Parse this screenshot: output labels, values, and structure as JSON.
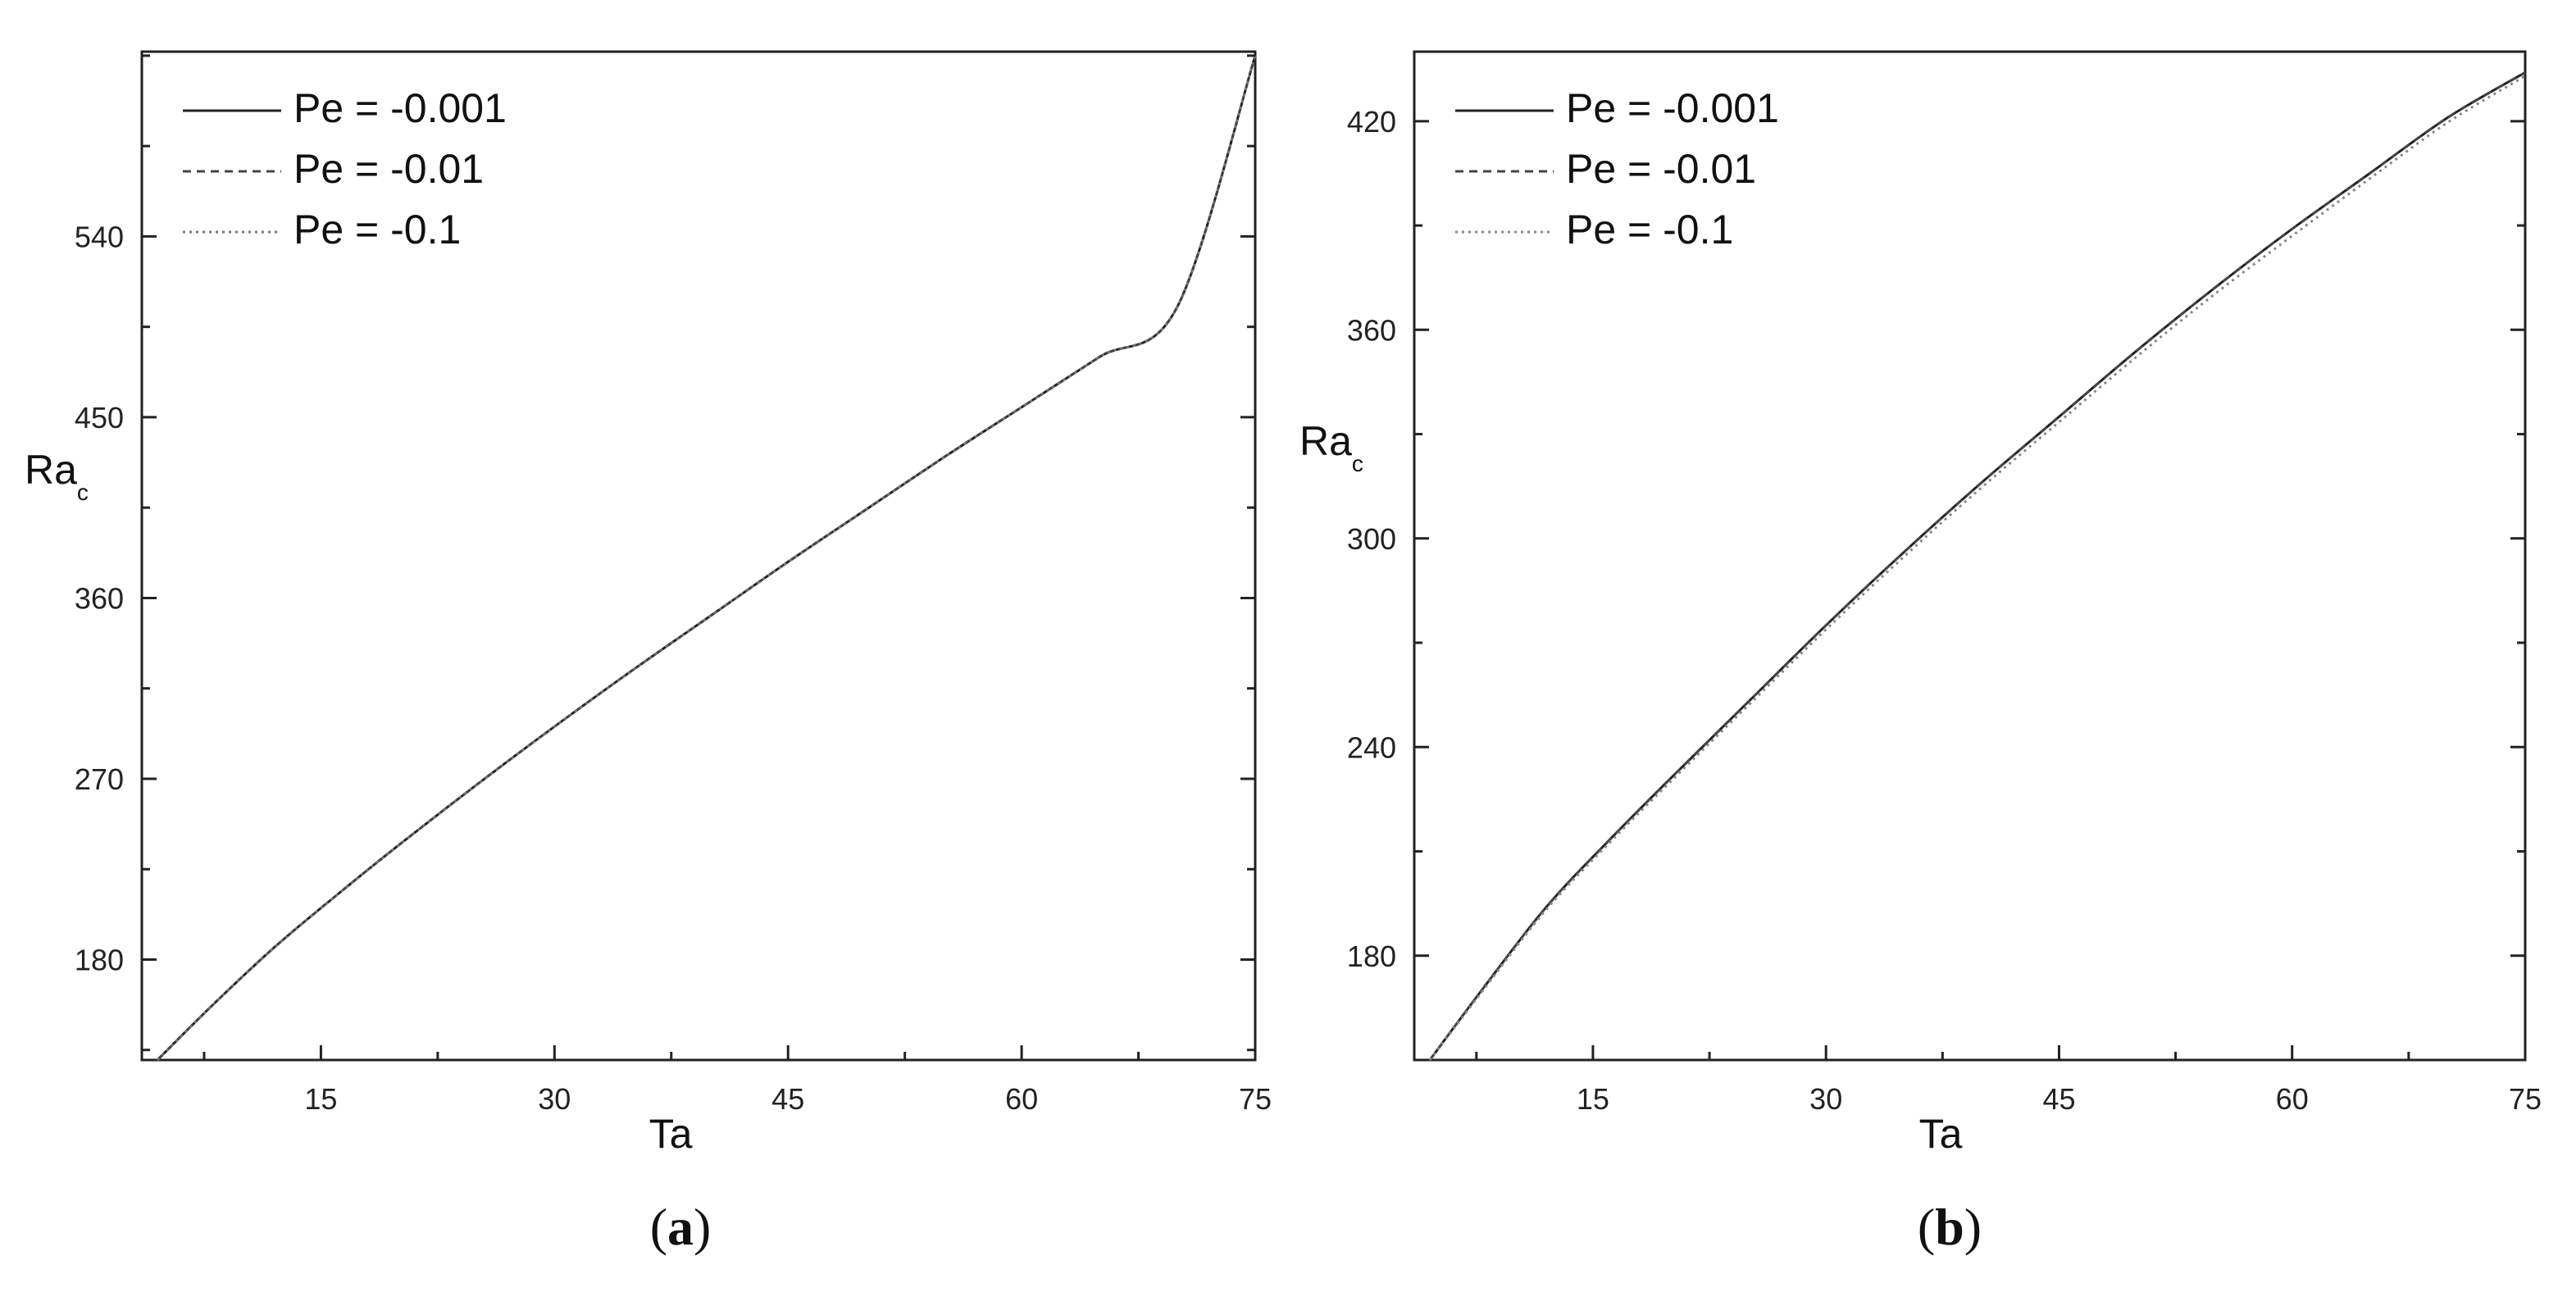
{
  "chart_data": [
    {
      "type": "line",
      "panel_label": "a",
      "xlabel": "Ta",
      "ylabel_main": "Ra",
      "ylabel_sub": "c",
      "xlim": [
        3.5,
        75
      ],
      "ylim": [
        130,
        632
      ],
      "xticks": [
        15,
        30,
        45,
        60,
        75
      ],
      "yticks": [
        180,
        270,
        360,
        450,
        540
      ],
      "legend_position": "top-left",
      "grid": false,
      "series": [
        {
          "name": "Pe = -0.001",
          "style": "solid",
          "color": "#222222",
          "x": [
            4.5,
            8,
            12,
            16,
            20,
            25,
            30,
            35,
            40,
            45,
            50,
            55,
            60,
            65,
            70,
            75
          ],
          "y": [
            130,
            157,
            186,
            212,
            237,
            267,
            296,
            324,
            351,
            378,
            404,
            430,
            455,
            480,
            505,
            630
          ]
        },
        {
          "name": "Pe = -0.01",
          "style": "dashed",
          "color": "#444444",
          "x": [
            4.5,
            8,
            12,
            16,
            20,
            25,
            30,
            35,
            40,
            45,
            50,
            55,
            60,
            65,
            70,
            75
          ],
          "y": [
            130,
            157,
            186,
            212,
            237,
            267,
            296,
            324,
            351,
            378,
            404,
            430,
            455,
            480,
            505,
            630
          ]
        },
        {
          "name": "Pe = -0.1",
          "style": "dotted",
          "color": "#777777",
          "x": [
            4.5,
            8,
            12,
            16,
            20,
            25,
            30,
            35,
            40,
            45,
            50,
            55,
            60,
            65,
            70,
            75
          ],
          "y": [
            130,
            157,
            186,
            212,
            237,
            267,
            296,
            324,
            351,
            378,
            404,
            430,
            455,
            480,
            505,
            630
          ]
        }
      ]
    },
    {
      "type": "line",
      "panel_label": "b",
      "xlabel": "Ta",
      "ylabel_main": "Ra",
      "ylabel_sub": "c",
      "xlim": [
        3.5,
        75
      ],
      "ylim": [
        150,
        440
      ],
      "xticks": [
        15,
        30,
        45,
        60,
        75
      ],
      "yticks": [
        180,
        240,
        300,
        360,
        420
      ],
      "legend_position": "top-left",
      "grid": false,
      "series": [
        {
          "name": "Pe = -0.001",
          "style": "solid",
          "color": "#222222",
          "x": [
            4.5,
            8,
            12,
            16,
            20,
            25,
            30,
            35,
            40,
            45,
            50,
            55,
            60,
            65,
            70,
            75
          ],
          "y": [
            150,
            171,
            194,
            213,
            231,
            253,
            275,
            296,
            316,
            335,
            354,
            372,
            389,
            405,
            421,
            434
          ]
        },
        {
          "name": "Pe = -0.01",
          "style": "dashed",
          "color": "#444444",
          "x": [
            4.5,
            8,
            12,
            16,
            20,
            25,
            30,
            35,
            40,
            45,
            50,
            55,
            60,
            65,
            70,
            75
          ],
          "y": [
            150,
            171,
            194,
            213,
            231,
            253,
            275,
            296,
            316,
            335,
            354,
            372,
            389,
            405,
            421,
            434
          ]
        },
        {
          "name": "Pe = -0.1",
          "style": "dotted",
          "color": "#888888",
          "x": [
            4.5,
            8,
            12,
            16,
            20,
            25,
            30,
            35,
            40,
            45,
            50,
            55,
            60,
            65,
            70,
            75
          ],
          "y": [
            150,
            170.5,
            193.3,
            212.2,
            230.1,
            252,
            273.8,
            294.7,
            314.6,
            333.5,
            352.3,
            370.2,
            387,
            403.5,
            419.6,
            433
          ]
        }
      ]
    }
  ]
}
